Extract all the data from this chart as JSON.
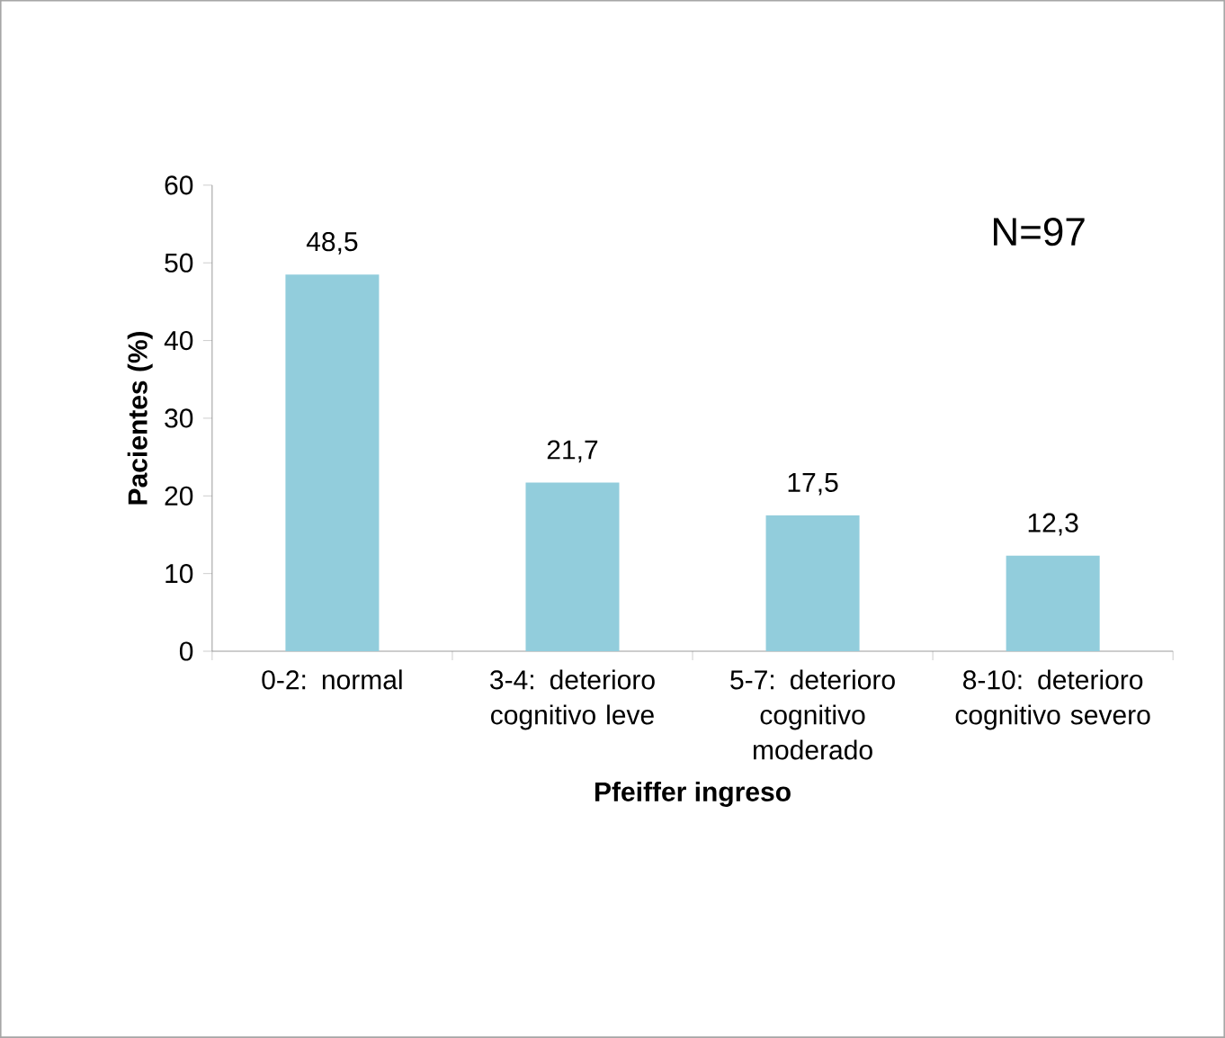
{
  "chart_data": {
    "type": "bar",
    "xlabel": "Pfeiffer ingreso",
    "ylabel": "Pacientes (%)",
    "categories": [
      "0-2: normal",
      "3-4: deterioro cognitivo leve",
      "5-7: deterioro cognitivo moderado",
      "8-10: deterioro cognitivo severo"
    ],
    "values": [
      48.5,
      21.7,
      17.5,
      12.3
    ],
    "value_labels": [
      "48,5",
      "21,7",
      "17,5",
      "12,3"
    ],
    "color": "#92cddc",
    "ylim": [
      0,
      60
    ],
    "yticks": [
      0,
      10,
      20,
      30,
      40,
      50,
      60
    ],
    "annotations": [
      "N=97"
    ]
  }
}
